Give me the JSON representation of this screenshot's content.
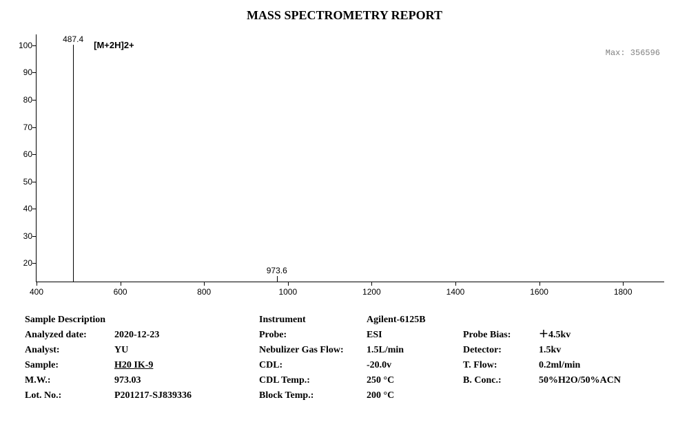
{
  "title": "MASS SPECTROMETRY REPORT",
  "chart": {
    "type": "mass-spectrum",
    "xlim": [
      400,
      1900
    ],
    "ylim": [
      13,
      104
    ],
    "xticks": [
      400,
      600,
      800,
      1000,
      1200,
      1400,
      1600,
      1800
    ],
    "yticks": [
      20,
      30,
      40,
      50,
      60,
      70,
      80,
      90,
      100
    ],
    "peaks": [
      {
        "mz": 487.4,
        "intensity": 100,
        "label": "487.4"
      },
      {
        "mz": 973.6,
        "intensity": 15,
        "label": "973.6"
      }
    ],
    "annotation": {
      "text": "[M+2H]2+",
      "near_mz": 487.4
    },
    "max_label": "Max: 356596",
    "line_color": "#000000",
    "axis_color": "#000000",
    "background": "#ffffff",
    "tick_fontsize": 12,
    "peak_label_fontsize": 12,
    "max_color": "#808080"
  },
  "meta": {
    "sample_description_heading": "Sample Description",
    "analyzed_date_label": "Analyzed date:",
    "analyzed_date": "2020-12-23",
    "analyst_label": "Analyst:",
    "analyst": "YU",
    "sample_label": "Sample:",
    "sample": "H20    IK-9",
    "mw_label": "M.W.:",
    "mw": "973.03",
    "lot_label": "Lot. No.:",
    "lot": "P201217-SJ839336",
    "instrument_label": "Instrument",
    "instrument": "Agilent-6125B",
    "probe_label": "Probe:",
    "probe": "ESI",
    "nebulizer_label": "Nebulizer Gas Flow:",
    "nebulizer": "1.5L/min",
    "cdl_label": "CDL:",
    "cdl": "-20.0v",
    "cdl_temp_label": "CDL Temp.:",
    "cdl_temp": "250 °C",
    "block_temp_label": "Block Temp.:",
    "block_temp": "200 °C",
    "probe_bias_label": "Probe Bias:",
    "probe_bias": "＋4.5kv",
    "detector_label": "Detector:",
    "detector": "1.5kv",
    "tflow_label": "T. Flow:",
    "tflow": "0.2ml/min",
    "bconc_label": "B. Conc.:",
    "bconc": "50%H2O/50%ACN"
  }
}
